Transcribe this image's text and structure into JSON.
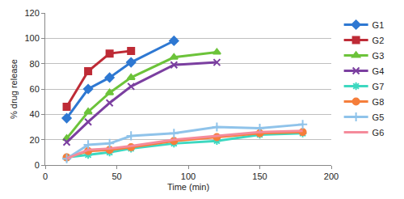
{
  "chart_data": {
    "type": "line",
    "x_label": "Time (min)",
    "y_label": "% drug release",
    "xlim": [
      0,
      200
    ],
    "xticks": [
      0,
      50,
      100,
      150,
      200
    ],
    "ylim": [
      0,
      120
    ],
    "yticks": [
      0,
      20,
      40,
      60,
      80,
      100,
      120
    ],
    "grid": true,
    "legend": "right",
    "series": [
      {
        "name": "G1",
        "color": "#2E78D2",
        "marker": "diamond",
        "x": [
          15,
          30,
          45,
          60,
          90
        ],
        "values": [
          37,
          60,
          69,
          81,
          98
        ]
      },
      {
        "name": "G2",
        "color": "#BE2B36",
        "marker": "square",
        "x": [
          15,
          30,
          45,
          60
        ],
        "values": [
          46,
          74,
          88,
          90
        ]
      },
      {
        "name": "G3",
        "color": "#6CC33A",
        "marker": "triangle",
        "x": [
          15,
          30,
          45,
          60,
          90,
          120
        ],
        "values": [
          21,
          42,
          57,
          69,
          85,
          89
        ]
      },
      {
        "name": "G4",
        "color": "#7B3FA0",
        "marker": "x",
        "x": [
          15,
          30,
          45,
          60,
          90,
          120
        ],
        "values": [
          18,
          34,
          49,
          62,
          79,
          81
        ]
      },
      {
        "name": "G7",
        "color": "#3DD8C0",
        "marker": "star",
        "x": [
          15,
          30,
          45,
          60,
          90,
          120,
          150,
          180
        ],
        "values": [
          6,
          8,
          10,
          13,
          17,
          19,
          24,
          25
        ]
      },
      {
        "name": "G8",
        "color": "#F57E3B",
        "marker": "circle",
        "x": [
          15,
          30,
          45,
          60,
          90,
          120,
          150,
          180
        ],
        "values": [
          6,
          11,
          12,
          14,
          19,
          22,
          25,
          26
        ]
      },
      {
        "name": "G5",
        "color": "#8FC3EA",
        "marker": "cross",
        "x": [
          15,
          30,
          45,
          60,
          90,
          120,
          150,
          180
        ],
        "values": [
          5,
          16,
          17,
          23,
          25,
          30,
          29,
          32
        ]
      },
      {
        "name": "G6",
        "color": "#F58B9B",
        "marker": "none",
        "x": [
          15,
          30,
          45,
          60,
          90,
          120,
          150,
          180
        ],
        "values": [
          5,
          12,
          13,
          15,
          20,
          23,
          26,
          27
        ]
      }
    ]
  }
}
